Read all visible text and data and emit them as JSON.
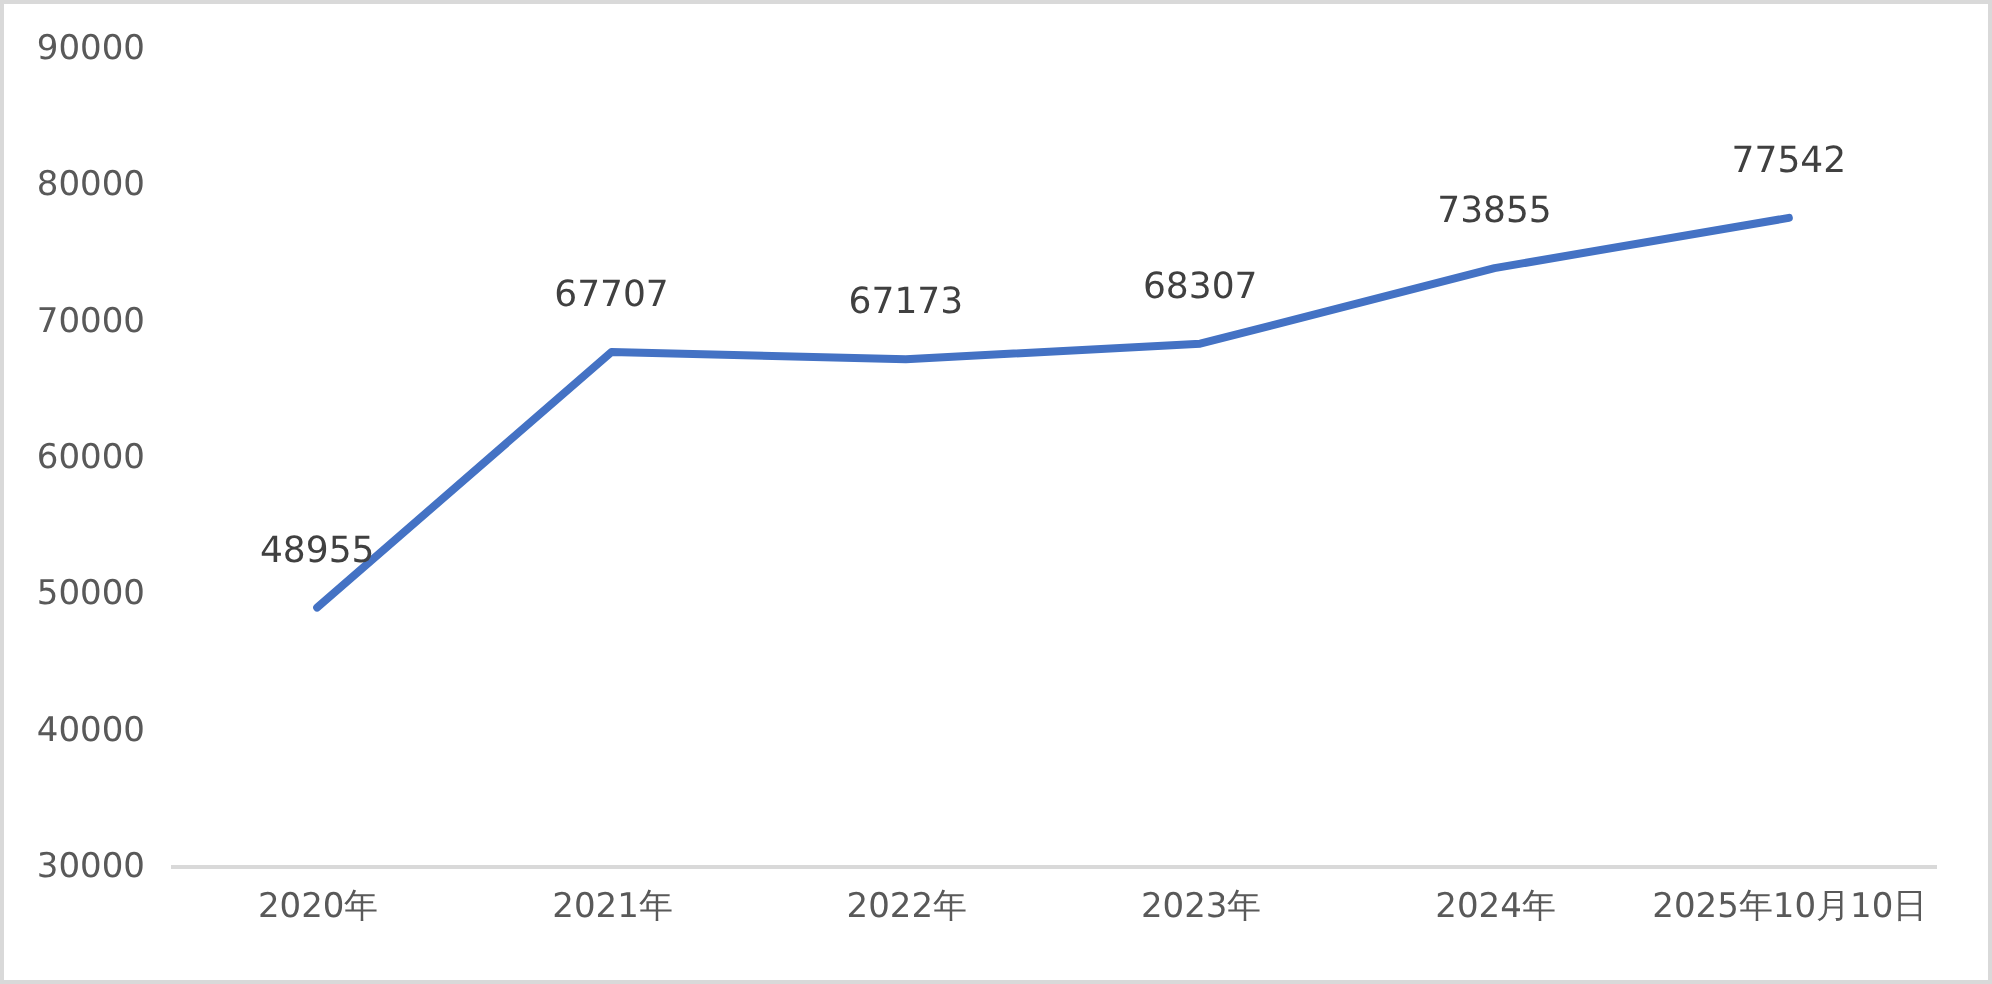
{
  "chart_data": {
    "type": "line",
    "categories": [
      "2020年",
      "2021年",
      "2022年",
      "2023年",
      "2024年",
      "2025年10月10日"
    ],
    "values": [
      48955,
      67707,
      67173,
      68307,
      73855,
      77542
    ],
    "color": "#4472c4",
    "ylim": [
      30000,
      90000
    ],
    "yticks": [
      30000,
      40000,
      50000,
      60000,
      70000,
      80000,
      90000
    ],
    "data_labels": true
  }
}
